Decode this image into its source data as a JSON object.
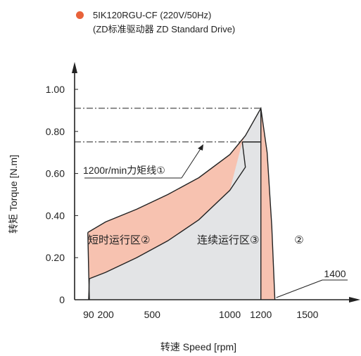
{
  "legend": {
    "line1": "5IK120RGU-CF (220V/50Hz)",
    "line2": "(ZD标准驱动器 ZD Standard Drive)",
    "dot_color": "#e8623a"
  },
  "colors": {
    "short_time_region": "#f7c2b0",
    "continuous_region": "#e3e4e6",
    "line": "#222222"
  },
  "chart_data": {
    "type": "area",
    "xlabel": "转速 Speed [rpm]",
    "ylabel": "转矩 Torque [N.m]",
    "xlim": [
      0,
      1650
    ],
    "ylim": [
      0,
      1.07
    ],
    "x_ticks": [
      {
        "value": 90,
        "label": "90"
      },
      {
        "value": 200,
        "label": "200"
      },
      {
        "value": 500,
        "label": "500"
      },
      {
        "value": 1000,
        "label": "1000"
      },
      {
        "value": 1200,
        "label": "1200"
      },
      {
        "value": 1500,
        "label": "1500"
      }
    ],
    "y_ticks": [
      {
        "value": 0,
        "label": "0"
      },
      {
        "value": 0.2,
        "label": "0.20"
      },
      {
        "value": 0.4,
        "label": "0.40"
      },
      {
        "value": 0.6,
        "label": "0.60"
      },
      {
        "value": 0.8,
        "label": "0.80"
      },
      {
        "value": 1.0,
        "label": "1.00"
      }
    ],
    "short_time_upper": {
      "x": [
        85,
        200,
        400,
        600,
        800,
        1000,
        1100,
        1200
      ],
      "y": [
        0.32,
        0.37,
        0.43,
        0.5,
        0.58,
        0.69,
        0.78,
        0.91
      ]
    },
    "short_time_tail": {
      "x": [
        1200,
        1240,
        1270,
        1290
      ],
      "y": [
        0.91,
        0.7,
        0.35,
        0
      ]
    },
    "continuous_upper": {
      "x": [
        95,
        200,
        400,
        600,
        800,
        1000,
        1100,
        1200
      ],
      "y": [
        0.1,
        0.13,
        0.2,
        0.28,
        0.38,
        0.52,
        0.63,
        0.75
      ]
    },
    "short_time_left_edge": {
      "x": [
        85,
        90,
        95
      ],
      "y": [
        0.32,
        0.15,
        0
      ]
    },
    "max_torque_line": {
      "value": 0.91
    },
    "rated_torque_line": {
      "value": 0.75,
      "start_x": 1080
    },
    "continuous_right_x": 1200,
    "annotations": {
      "rated_torque_label": "1200r/min力矩线①",
      "short_time_label": "短时运行区②",
      "continuous_label": "连续运行区③",
      "tail_label": "②",
      "max_speed_label": "1400"
    }
  }
}
